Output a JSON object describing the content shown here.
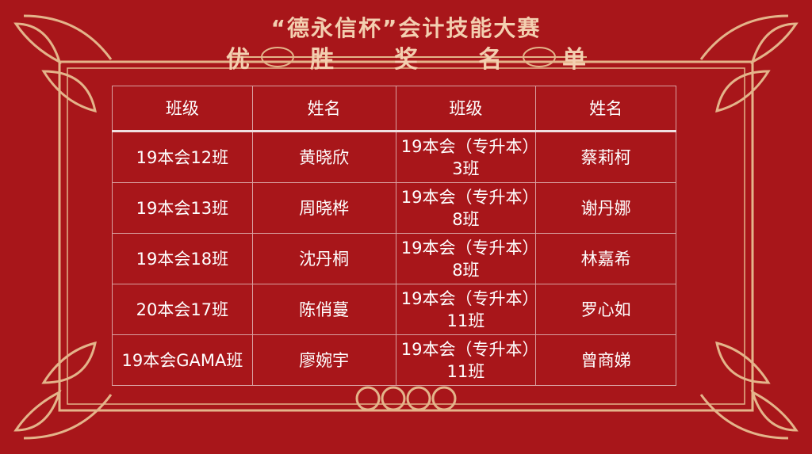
{
  "title_line1": "“德永信杯”会计技能大赛",
  "title_line2": [
    "优",
    "胜",
    "奖",
    "名",
    "单"
  ],
  "colors": {
    "background": "#a8161a",
    "ornament": "#e4b48a",
    "text": "#ffffff"
  },
  "table": {
    "headers": [
      "班级",
      "姓名",
      "班级",
      "姓名"
    ],
    "rows": [
      [
        "19本会12班",
        "黄晓欣",
        "19本会（专升本）3班",
        "蔡莉柯"
      ],
      [
        "19本会13班",
        "周晓桦",
        "19本会（专升本）8班",
        "谢丹娜"
      ],
      [
        "19本会18班",
        "沈丹桐",
        "19本会（专升本）8班",
        "林嘉希"
      ],
      [
        "20本会17班",
        "陈俏蔓",
        "19本会（专升本）11班",
        "罗心如"
      ],
      [
        "19本会GAMA班",
        "廖婉宇",
        "19本会（专升本）11班",
        "曾商娣"
      ]
    ]
  }
}
